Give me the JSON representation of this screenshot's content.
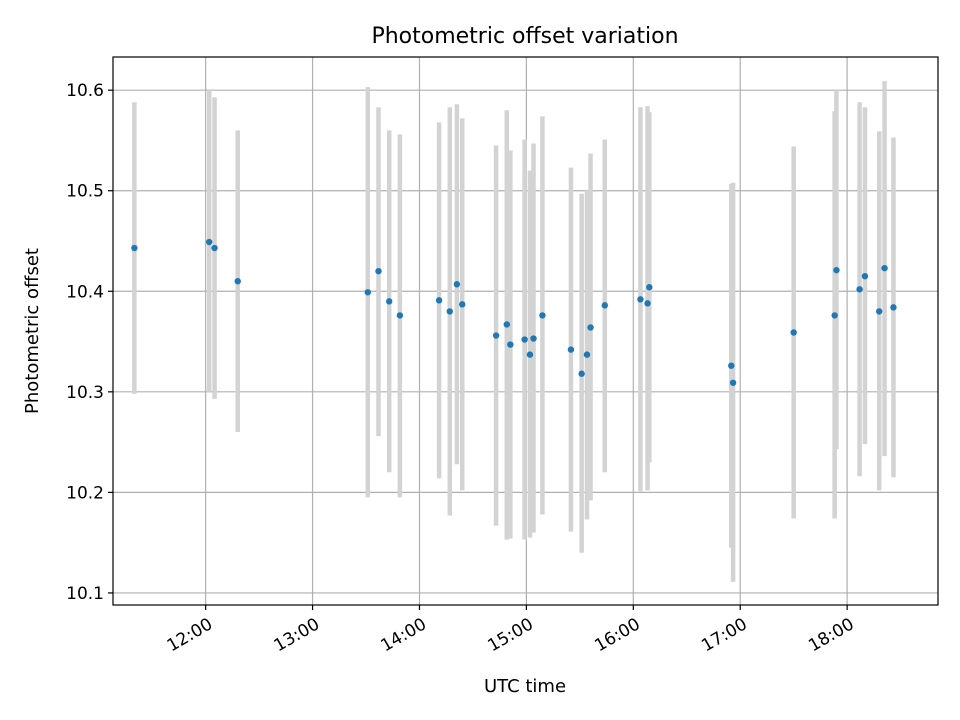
{
  "chart_data": {
    "type": "scatter",
    "title": "Photometric offset variation",
    "xlabel": "UTC time",
    "ylabel": "Photometric offset",
    "xlim": [
      "11:08",
      "18:51"
    ],
    "ylim": [
      10.088,
      10.633
    ],
    "grid": true,
    "x_ticks": [
      "12:00",
      "13:00",
      "14:00",
      "15:00",
      "16:00",
      "17:00",
      "18:00"
    ],
    "y_ticks": [
      "10.1",
      "10.2",
      "10.3",
      "10.4",
      "10.5",
      "10.6"
    ],
    "colors": {
      "points": "#1f77b4",
      "error_bars": "#d3d3d3",
      "grid": "#b0b0b0"
    },
    "series": [
      {
        "points": [
          {
            "x": "11:20",
            "y": 10.443,
            "low": 10.298,
            "high": 10.588
          },
          {
            "x": "12:02",
            "y": 10.449,
            "low": 10.3,
            "high": 10.6
          },
          {
            "x": "12:05",
            "y": 10.443,
            "low": 10.293,
            "high": 10.593
          },
          {
            "x": "12:18",
            "y": 10.41,
            "low": 10.26,
            "high": 10.56
          },
          {
            "x": "13:31",
            "y": 10.399,
            "low": 10.195,
            "high": 10.603
          },
          {
            "x": "13:37",
            "y": 10.42,
            "low": 10.256,
            "high": 10.583
          },
          {
            "x": "13:43",
            "y": 10.39,
            "low": 10.22,
            "high": 10.56
          },
          {
            "x": "13:49",
            "y": 10.376,
            "low": 10.195,
            "high": 10.556
          },
          {
            "x": "14:11",
            "y": 10.391,
            "low": 10.214,
            "high": 10.568
          },
          {
            "x": "14:17",
            "y": 10.38,
            "low": 10.177,
            "high": 10.583
          },
          {
            "x": "14:21",
            "y": 10.407,
            "low": 10.228,
            "high": 10.586
          },
          {
            "x": "14:24",
            "y": 10.387,
            "low": 10.202,
            "high": 10.572
          },
          {
            "x": "14:43",
            "y": 10.356,
            "low": 10.167,
            "high": 10.545
          },
          {
            "x": "14:49",
            "y": 10.367,
            "low": 10.153,
            "high": 10.58
          },
          {
            "x": "14:51",
            "y": 10.347,
            "low": 10.154,
            "high": 10.54
          },
          {
            "x": "14:59",
            "y": 10.352,
            "low": 10.153,
            "high": 10.551
          },
          {
            "x": "15:02",
            "y": 10.337,
            "low": 10.155,
            "high": 10.52
          },
          {
            "x": "15:04",
            "y": 10.353,
            "low": 10.16,
            "high": 10.547
          },
          {
            "x": "15:09",
            "y": 10.376,
            "low": 10.178,
            "high": 10.574
          },
          {
            "x": "15:25",
            "y": 10.342,
            "low": 10.161,
            "high": 10.523
          },
          {
            "x": "15:31",
            "y": 10.318,
            "low": 10.14,
            "high": 10.497
          },
          {
            "x": "15:34",
            "y": 10.337,
            "low": 10.173,
            "high": 10.501
          },
          {
            "x": "15:36",
            "y": 10.364,
            "low": 10.192,
            "high": 10.537
          },
          {
            "x": "15:44",
            "y": 10.386,
            "low": 10.22,
            "high": 10.551
          },
          {
            "x": "16:04",
            "y": 10.392,
            "low": 10.201,
            "high": 10.583
          },
          {
            "x": "16:08",
            "y": 10.388,
            "low": 10.202,
            "high": 10.584
          },
          {
            "x": "16:09",
            "y": 10.404,
            "low": 10.23,
            "high": 10.578
          },
          {
            "x": "16:55",
            "y": 10.326,
            "low": 10.145,
            "high": 10.507
          },
          {
            "x": "16:56",
            "y": 10.309,
            "low": 10.111,
            "high": 10.508
          },
          {
            "x": "17:30",
            "y": 10.359,
            "low": 10.174,
            "high": 10.544
          },
          {
            "x": "17:53",
            "y": 10.376,
            "low": 10.174,
            "high": 10.579
          },
          {
            "x": "17:54",
            "y": 10.421,
            "low": 10.243,
            "high": 10.6
          },
          {
            "x": "18:07",
            "y": 10.402,
            "low": 10.216,
            "high": 10.588
          },
          {
            "x": "18:10",
            "y": 10.415,
            "low": 10.248,
            "high": 10.583
          },
          {
            "x": "18:18",
            "y": 10.38,
            "low": 10.202,
            "high": 10.559
          },
          {
            "x": "18:21",
            "y": 10.423,
            "low": 10.236,
            "high": 10.609
          },
          {
            "x": "18:26",
            "y": 10.384,
            "low": 10.215,
            "high": 10.553
          }
        ]
      }
    ]
  }
}
